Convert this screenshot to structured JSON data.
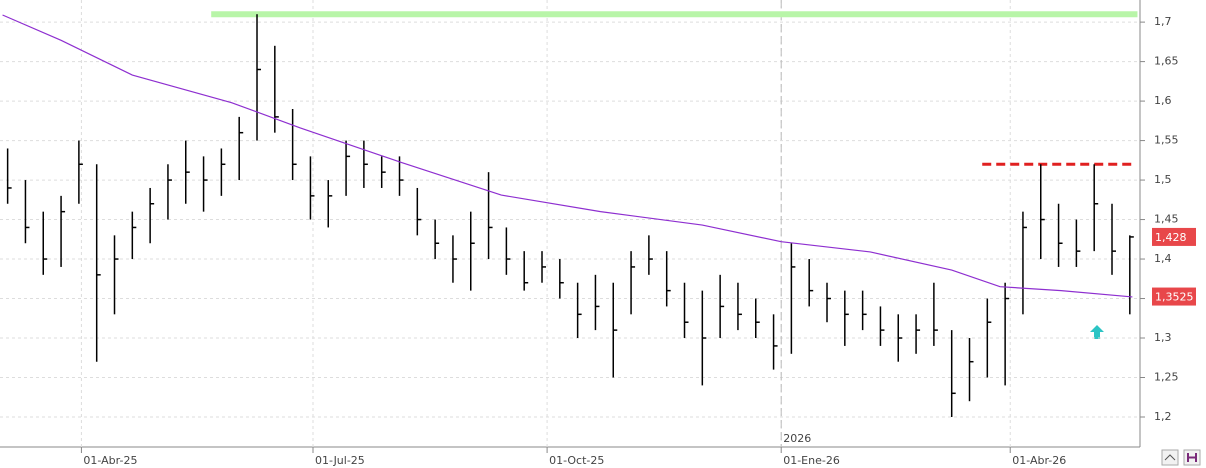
{
  "chart_data": {
    "type": "ohlc",
    "xlim": [
      "2025-02-28",
      "2026-05-22"
    ],
    "ylim": [
      1.162,
      1.728
    ],
    "yticks": [
      {
        "value": 1.2,
        "label": "1,2"
      },
      {
        "value": 1.25,
        "label": "1,25"
      },
      {
        "value": 1.3,
        "label": "1,3"
      },
      {
        "value": 1.35,
        "label": "1,35"
      },
      {
        "value": 1.4,
        "label": "1,4"
      },
      {
        "value": 1.45,
        "label": "1,45"
      },
      {
        "value": 1.5,
        "label": "1,5"
      },
      {
        "value": 1.55,
        "label": "1,55"
      },
      {
        "value": 1.6,
        "label": "1,6"
      },
      {
        "value": 1.65,
        "label": "1,65"
      },
      {
        "value": 1.7,
        "label": "1,7"
      }
    ],
    "xticks": [
      {
        "value": "2025-04-01",
        "label": "01-Abr-25"
      },
      {
        "value": "2025-07-01",
        "label": "01-Jul-25"
      },
      {
        "value": "2025-10-01",
        "label": "01-Oct-25"
      },
      {
        "value": "2026-01-01",
        "label": "01-Ene-26"
      },
      {
        "value": "2026-04-01",
        "label": "01-Abr-26"
      }
    ],
    "year_marker": {
      "value": "2026-01-01",
      "label": "2026"
    },
    "grid": true,
    "bars": {
      "color": "#000000",
      "x": [
        "2025-03-03",
        "2025-03-10",
        "2025-03-17",
        "2025-03-24",
        "2025-03-31",
        "2025-04-07",
        "2025-04-14",
        "2025-04-21",
        "2025-04-28",
        "2025-05-05",
        "2025-05-12",
        "2025-05-19",
        "2025-05-26",
        "2025-06-02",
        "2025-06-09",
        "2025-06-16",
        "2025-06-23",
        "2025-06-30",
        "2025-07-07",
        "2025-07-14",
        "2025-07-21",
        "2025-07-28",
        "2025-08-04",
        "2025-08-11",
        "2025-08-18",
        "2025-08-25",
        "2025-09-01",
        "2025-09-08",
        "2025-09-15",
        "2025-09-22",
        "2025-09-29",
        "2025-10-06",
        "2025-10-13",
        "2025-10-20",
        "2025-10-27",
        "2025-11-03",
        "2025-11-10",
        "2025-11-17",
        "2025-11-24",
        "2025-12-01",
        "2025-12-08",
        "2025-12-15",
        "2025-12-22",
        "2025-12-29",
        "2026-01-05",
        "2026-01-12",
        "2026-01-19",
        "2026-01-26",
        "2026-02-02",
        "2026-02-09",
        "2026-02-16",
        "2026-02-23",
        "2026-03-02",
        "2026-03-09",
        "2026-03-16",
        "2026-03-23",
        "2026-03-30",
        "2026-04-06",
        "2026-04-13",
        "2026-04-20",
        "2026-04-27",
        "2026-05-04",
        "2026-05-11",
        "2026-05-18"
      ],
      "high": [
        1.54,
        1.5,
        1.46,
        1.48,
        1.55,
        1.52,
        1.43,
        1.46,
        1.49,
        1.52,
        1.55,
        1.53,
        1.54,
        1.58,
        1.71,
        1.67,
        1.59,
        1.53,
        1.5,
        1.55,
        1.55,
        1.53,
        1.53,
        1.49,
        1.45,
        1.43,
        1.46,
        1.51,
        1.44,
        1.41,
        1.41,
        1.4,
        1.37,
        1.38,
        1.37,
        1.41,
        1.43,
        1.41,
        1.37,
        1.36,
        1.38,
        1.37,
        1.35,
        1.33,
        1.42,
        1.4,
        1.37,
        1.36,
        1.36,
        1.34,
        1.33,
        1.33,
        1.37,
        1.31,
        1.3,
        1.35,
        1.37,
        1.46,
        1.52,
        1.47,
        1.45,
        1.52,
        1.47,
        1.43
      ],
      "low": [
        1.47,
        1.42,
        1.38,
        1.39,
        1.47,
        1.27,
        1.33,
        1.4,
        1.42,
        1.45,
        1.47,
        1.46,
        1.48,
        1.5,
        1.55,
        1.56,
        1.5,
        1.45,
        1.44,
        1.48,
        1.49,
        1.49,
        1.48,
        1.43,
        1.4,
        1.37,
        1.36,
        1.4,
        1.38,
        1.36,
        1.37,
        1.35,
        1.3,
        1.31,
        1.25,
        1.33,
        1.38,
        1.34,
        1.3,
        1.24,
        1.3,
        1.31,
        1.3,
        1.26,
        1.28,
        1.34,
        1.32,
        1.29,
        1.31,
        1.29,
        1.27,
        1.28,
        1.29,
        1.2,
        1.22,
        1.25,
        1.24,
        1.33,
        1.4,
        1.39,
        1.39,
        1.41,
        1.38,
        1.33
      ],
      "close": [
        1.49,
        1.44,
        1.4,
        1.46,
        1.52,
        1.38,
        1.4,
        1.44,
        1.47,
        1.5,
        1.51,
        1.5,
        1.52,
        1.56,
        1.64,
        1.58,
        1.52,
        1.48,
        1.48,
        1.53,
        1.52,
        1.51,
        1.5,
        1.45,
        1.42,
        1.4,
        1.42,
        1.44,
        1.4,
        1.37,
        1.39,
        1.37,
        1.33,
        1.34,
        1.31,
        1.39,
        1.4,
        1.36,
        1.32,
        1.3,
        1.34,
        1.33,
        1.32,
        1.29,
        1.39,
        1.36,
        1.35,
        1.33,
        1.33,
        1.31,
        1.3,
        1.31,
        1.31,
        1.23,
        1.27,
        1.32,
        1.35,
        1.44,
        1.45,
        1.42,
        1.41,
        1.47,
        1.41,
        1.428
      ]
    },
    "series": [
      {
        "color": "#8e2fd0",
        "x": [
          "2025-03-01",
          "2025-03-24",
          "2025-04-21",
          "2025-05-30",
          "2025-06-26",
          "2025-08-05",
          "2025-09-13",
          "2025-10-22",
          "2025-12-01",
          "2026-01-01",
          "2026-02-05",
          "2026-03-09",
          "2026-03-28",
          "2026-04-21",
          "2026-05-19"
        ],
        "values": [
          1.709,
          1.677,
          1.633,
          1.598,
          1.566,
          1.522,
          1.481,
          1.46,
          1.443,
          1.422,
          1.409,
          1.386,
          1.365,
          1.36,
          1.352
        ]
      }
    ],
    "hlines": [
      {
        "value": 1.71,
        "start": "2025-05-22",
        "end": "2026-05-21",
        "color": "#b8f5a8",
        "dashed": false
      },
      {
        "value": 1.52,
        "start": "2026-03-21",
        "end": "2026-05-19",
        "color": "#e02020",
        "dashed": true
      }
    ],
    "price_labels": [
      {
        "value": 1.428,
        "label": "1,428",
        "color": "#e8474a"
      },
      {
        "value": 1.3525,
        "label": "1,3525",
        "color": "#e8474a"
      }
    ]
  }
}
